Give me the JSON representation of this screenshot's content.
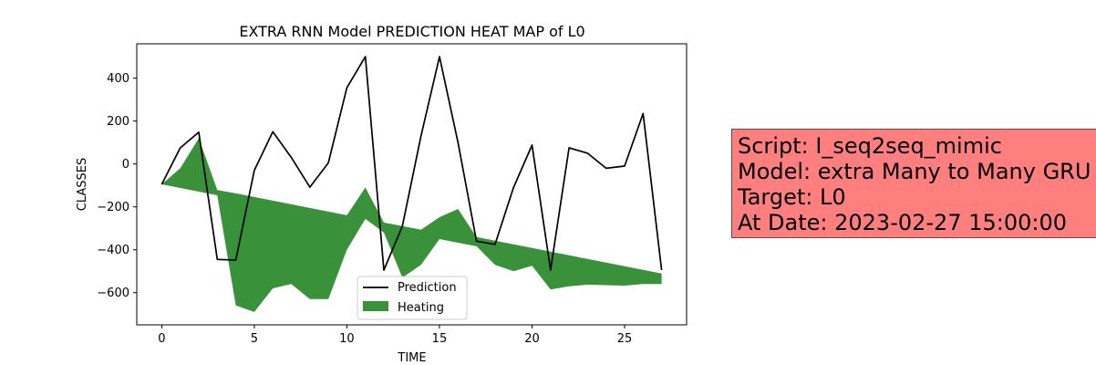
{
  "chart_data": {
    "type": "line",
    "title": "EXTRA RNN Model PREDICTION HEAT MAP of L0",
    "xlabel": "TIME",
    "ylabel": "CLASSES",
    "xlim": [
      -1.35,
      28.35
    ],
    "ylim": [
      -750,
      560
    ],
    "xticks": [
      0,
      5,
      10,
      15,
      20,
      25
    ],
    "yticks": [
      -600,
      -400,
      -200,
      0,
      200,
      400
    ],
    "ytick_labels": [
      "−600",
      "−400",
      "−200",
      "0",
      "200",
      "400"
    ],
    "legend_position": "lower center",
    "colors": {
      "prediction": "#000000",
      "heating": "#2e8b2e"
    },
    "x": [
      0,
      1,
      2,
      3,
      4,
      5,
      6,
      7,
      8,
      9,
      10,
      11,
      12,
      13,
      14,
      15,
      16,
      17,
      18,
      19,
      20,
      21,
      22,
      23,
      24,
      25,
      26,
      27
    ],
    "series": [
      {
        "name": "Prediction",
        "kind": "line",
        "values": [
          -95,
          75,
          148,
          -445,
          -448,
          -30,
          150,
          30,
          -108,
          5,
          355,
          500,
          -495,
          -290,
          130,
          500,
          100,
          -360,
          -375,
          -110,
          88,
          -495,
          75,
          50,
          -20,
          -10,
          235,
          -495
        ]
      },
      {
        "name": "Heating",
        "kind": "fill_between",
        "upper": [
          -95,
          -20,
          120,
          -122,
          -137,
          -154,
          -171,
          -188,
          -205,
          -222,
          -239,
          -110,
          -273,
          -290,
          -307,
          -248,
          -210,
          -341,
          -358,
          -375,
          -392,
          -409,
          -426,
          -443,
          -460,
          -477,
          -494,
          -511
        ],
        "lower": [
          -95,
          -112,
          -129,
          -146,
          -660,
          -690,
          -580,
          -560,
          -630,
          -630,
          -400,
          -256,
          -320,
          -530,
          -470,
          -350,
          -367,
          -384,
          -470,
          -500,
          -475,
          -585,
          -570,
          -563,
          -565,
          -567,
          -560,
          -560
        ]
      }
    ]
  },
  "info_box": {
    "line1": "Script: I_seq2seq_mimic",
    "line2": "Model: extra Many to Many GRU",
    "line3": "Target: L0",
    "line4": "At Date: 2023-02-27 15:00:00"
  }
}
